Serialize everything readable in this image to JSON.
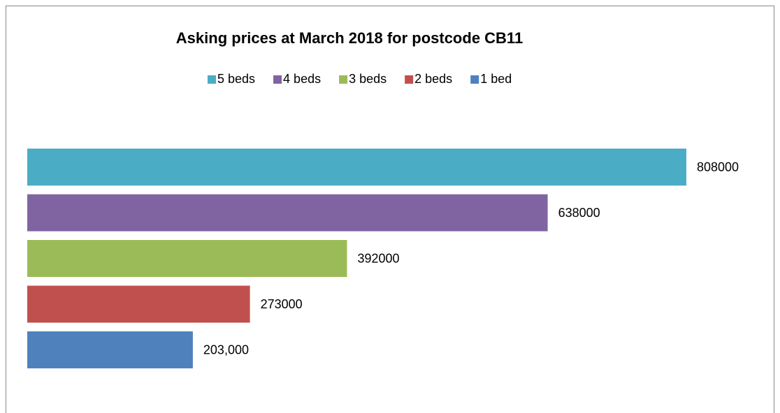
{
  "chart_data": {
    "type": "bar",
    "orientation": "horizontal",
    "title": "Asking prices at March 2018 for postcode CB11",
    "legend": "top",
    "series": [
      {
        "name": "5 beds",
        "color": "#4bacc6",
        "values": [
          808000
        ]
      },
      {
        "name": "4 beds",
        "color": "#8064a2",
        "values": [
          638000
        ]
      },
      {
        "name": "3 beds",
        "color": "#9bbb59",
        "values": [
          392000
        ]
      },
      {
        "name": "2 beds",
        "color": "#c0504d",
        "values": [
          273000
        ]
      },
      {
        "name": "1 bed",
        "color": "#4f81bd",
        "values": [
          203000
        ],
        "value_labels": [
          "203,000"
        ]
      }
    ]
  }
}
